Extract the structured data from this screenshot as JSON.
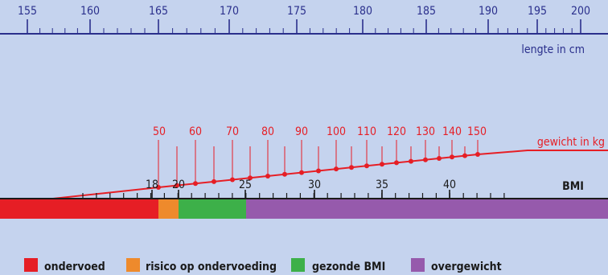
{
  "colors": {
    "background": "#c5d3ee",
    "height_scale": "#2a2f8c",
    "weight_scale": "#e61e25",
    "bmi_scale": "#1a1a1a",
    "ondervoed": "#e61e25",
    "risico": "#ee8a2c",
    "gezond": "#3db049",
    "overgewicht": "#965aac"
  },
  "height_scale": {
    "label": "lengte in cm",
    "ticks": [
      "155",
      "160",
      "165",
      "170",
      "175",
      "180",
      "185",
      "190",
      "195",
      "200"
    ]
  },
  "weight_scale": {
    "label": "gewicht in kg",
    "ticks": [
      "50",
      "60",
      "70",
      "80",
      "90",
      "100",
      "110",
      "120",
      "130",
      "140",
      "150"
    ]
  },
  "bmi_scale": {
    "label": "BMI",
    "ticks": [
      "18",
      "20",
      "25",
      "30",
      "35",
      "40"
    ]
  },
  "legend": [
    {
      "key": "ondervoed",
      "label": "ondervoed",
      "color": "#e61e25"
    },
    {
      "key": "risico",
      "label": "risico op ondervoeding",
      "color": "#ee8a2c"
    },
    {
      "key": "gezond",
      "label": "gezonde BMI",
      "color": "#3db049"
    },
    {
      "key": "overgewicht",
      "label": "overgewicht",
      "color": "#965aac"
    }
  ],
  "bmi_bands": [
    {
      "key": "ondervoed",
      "from": 0,
      "to": 18.5
    },
    {
      "key": "risico",
      "from": 18.5,
      "to": 20
    },
    {
      "key": "gezond",
      "from": 20,
      "to": 25
    },
    {
      "key": "overgewicht",
      "from": 25,
      "to": 99
    }
  ]
}
